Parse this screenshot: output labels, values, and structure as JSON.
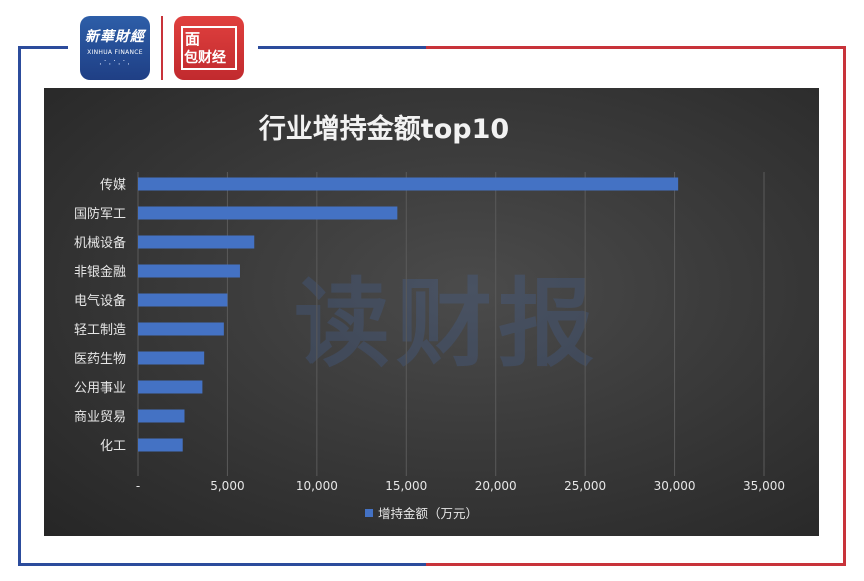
{
  "header": {
    "logo_xinhua_cn": "新華財經",
    "logo_xinhua_en": "XINHUA FINANCE",
    "logo_red_line1": "面",
    "logo_red_line2": "包财经"
  },
  "watermark_text": "读财报",
  "colors": {
    "bar": "#4472c4",
    "frame_blue": "#2c4c9c",
    "frame_red": "#c8333a",
    "panel_bg": "#3a3a3a"
  },
  "chart_data": {
    "type": "bar",
    "orientation": "horizontal",
    "title": "行业增持金额top10",
    "categories": [
      "传媒",
      "国防军工",
      "机械设备",
      "非银金融",
      "电气设备",
      "轻工制造",
      "医药生物",
      "公用事业",
      "商业贸易",
      "化工"
    ],
    "series": [
      {
        "name": "增持金额（万元）",
        "values": [
          30200,
          14500,
          6500,
          5700,
          5000,
          4800,
          3700,
          3600,
          2600,
          2500
        ]
      }
    ],
    "x_ticks": [
      "-",
      "5,000",
      "10,000",
      "15,000",
      "20,000",
      "25,000",
      "30,000",
      "35,000"
    ],
    "xlim": [
      0,
      35000
    ],
    "grid": true,
    "legend_position": "bottom"
  }
}
